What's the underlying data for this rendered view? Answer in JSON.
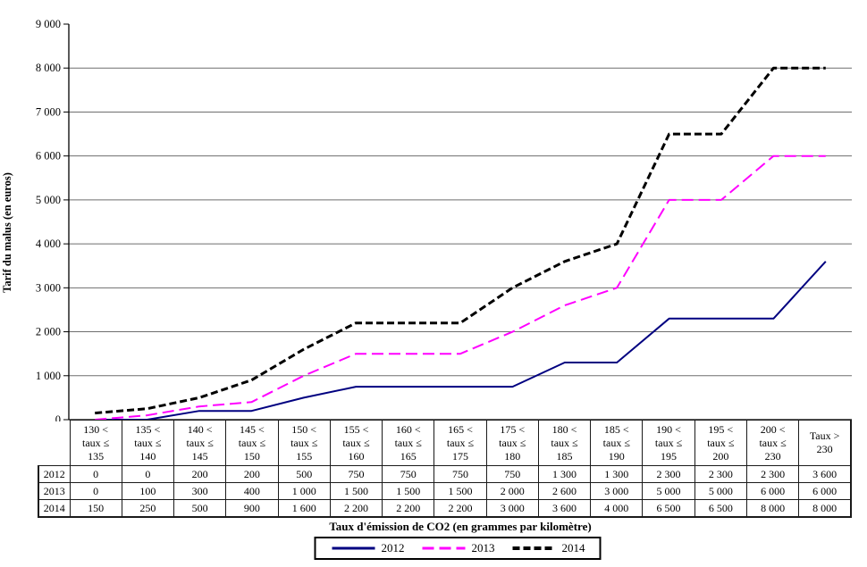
{
  "chart_data": {
    "type": "line",
    "title": "",
    "xlabel": "Taux d'émission de CO2 (en grammes par kilomètre)",
    "ylabel": "Tarif du malus (en euros)",
    "ylim": [
      0,
      9000
    ],
    "ytick_step": 1000,
    "ytick_labels": [
      "0",
      "1 000",
      "2 000",
      "3 000",
      "4 000",
      "5 000",
      "6 000",
      "7 000",
      "8 000",
      "9 000"
    ],
    "grid": "horizontal",
    "gridline_color": "#6e6e6e",
    "axis_color": "#000000",
    "legend_position": "bottom",
    "categories": [
      "130 <\ntaux ≤\n135",
      "135 <\ntaux ≤\n140",
      "140 <\ntaux ≤\n145",
      "145 <\ntaux ≤\n150",
      "150 <\ntaux ≤\n155",
      "155 <\ntaux ≤\n160",
      "160 <\ntaux ≤\n165",
      "165 <\ntaux ≤\n175",
      "175 <\ntaux ≤\n180",
      "180 <\ntaux ≤\n185",
      "185 <\ntaux ≤\n190",
      "190 <\ntaux ≤\n195",
      "195 <\ntaux ≤\n200",
      "200 <\ntaux ≤\n230",
      "Taux >\n230"
    ],
    "series": [
      {
        "name": "2012",
        "color": "#000080",
        "style": "solid",
        "dash": "",
        "stroke_width": 2,
        "values": [
          0,
          0,
          200,
          200,
          500,
          750,
          750,
          750,
          750,
          1300,
          1300,
          2300,
          2300,
          2300,
          3600
        ]
      },
      {
        "name": "2013",
        "color": "#FF00FF",
        "style": "dashed",
        "dash": "13 6",
        "stroke_width": 2,
        "values": [
          0,
          100,
          300,
          400,
          1000,
          1500,
          1500,
          1500,
          2000,
          2600,
          3000,
          5000,
          5000,
          6000,
          6000
        ]
      },
      {
        "name": "2014",
        "color": "#000000",
        "style": "dashed",
        "dash": "8 4",
        "stroke_width": 3,
        "values": [
          150,
          250,
          500,
          900,
          1600,
          2200,
          2200,
          2200,
          3000,
          3600,
          4000,
          6500,
          6500,
          8000,
          8000
        ]
      }
    ]
  }
}
